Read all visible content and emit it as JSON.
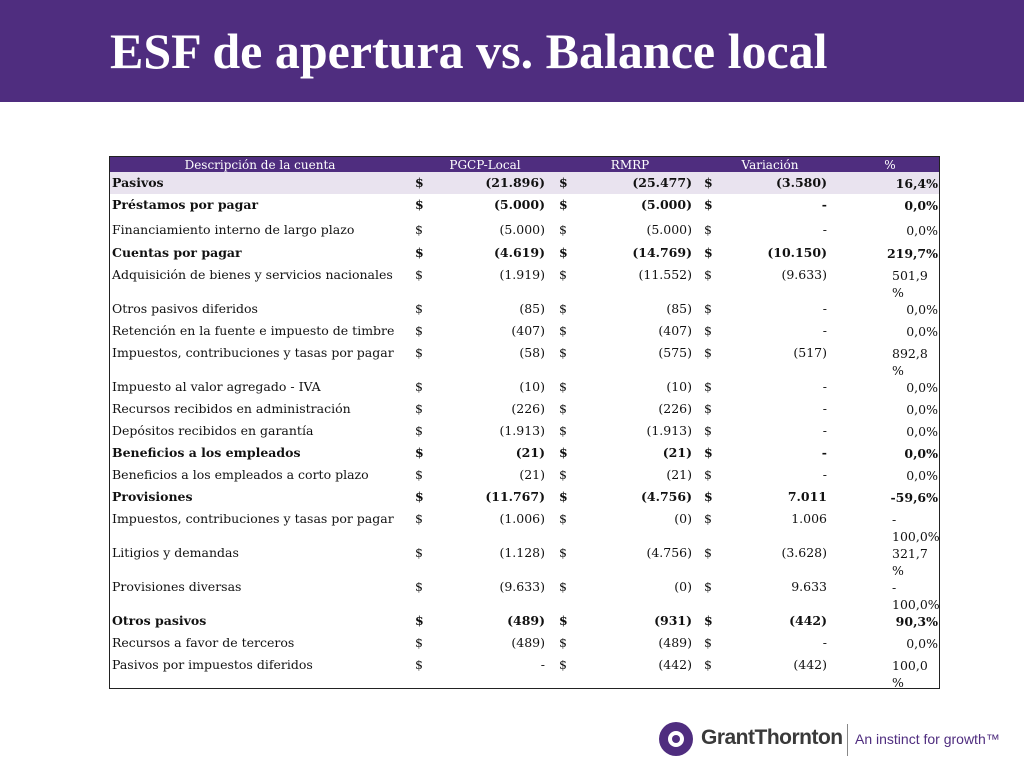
{
  "slide": {
    "title": "ESF de apertura vs. Balance local"
  },
  "table": {
    "headers": {
      "description": "Descripción de la cuenta",
      "pgcp": "PGCP-Local",
      "rmrp": "RMRP",
      "variation": "Variación",
      "percent": "%"
    },
    "rows": [
      {
        "desc": " Pasivos",
        "s1": "$",
        "v1": "(21.896)",
        "s2": "$",
        "v2": "(25.477)",
        "s3": "$",
        "v3": "(3.580)",
        "pct": "16,4%",
        "bold": true,
        "first": true,
        "h": 22
      },
      {
        "desc": "Préstamos por pagar",
        "s1": "$",
        "v1": "(5.000)",
        "s2": "$",
        "v2": "(5.000)",
        "s3": "$",
        "v3": "-",
        "pct": "0,0%",
        "bold": true,
        "h": 25
      },
      {
        "desc": "Financiamiento interno de largo plazo",
        "s1": "$",
        "v1": "(5.000)",
        "s2": "$",
        "v2": "(5.000)",
        "s3": "$",
        "v3": "-",
        "pct": "0,0%",
        "h": 23
      },
      {
        "desc": "Cuentas por pagar",
        "s1": "$",
        "v1": "(4.619)",
        "s2": "$",
        "v2": "(14.769)",
        "s3": "$",
        "v3": "(10.150)",
        "pct": "219,7%",
        "bold": true,
        "h": 22
      },
      {
        "desc": "Adquisición de bienes y servicios nacionales",
        "s1": "$",
        "v1": "(1.919)",
        "s2": "$",
        "v2": "(11.552)",
        "s3": "$",
        "v3": "(9.633)",
        "pct": "501,9 %",
        "wrap": true,
        "h": 34
      },
      {
        "desc": "Otros pasivos diferidos",
        "s1": "$",
        "v1": "(85)",
        "s2": "$",
        "v2": "(85)",
        "s3": "$",
        "v3": "-",
        "pct": "0,0%",
        "h": 22
      },
      {
        "desc": "Retención en la fuente e impuesto de timbre",
        "s1": "$",
        "v1": "(407)",
        "s2": "$",
        "v2": "(407)",
        "s3": "$",
        "v3": "-",
        "pct": "0,0%",
        "h": 22
      },
      {
        "desc": "Impuestos, contribuciones y tasas por pagar",
        "s1": "$",
        "v1": "(58)",
        "s2": "$",
        "v2": "(575)",
        "s3": "$",
        "v3": "(517)",
        "pct": "892,8 %",
        "wrap": true,
        "h": 34
      },
      {
        "desc": "Impuesto al valor agregado - IVA",
        "s1": "$",
        "v1": "(10)",
        "s2": "$",
        "v2": "(10)",
        "s3": "$",
        "v3": "-",
        "pct": "0,0%",
        "h": 22
      },
      {
        "desc": "Recursos recibidos en administración",
        "s1": "$",
        "v1": "(226)",
        "s2": "$",
        "v2": "(226)",
        "s3": "$",
        "v3": "-",
        "pct": "0,0%",
        "h": 22
      },
      {
        "desc": "Depósitos recibidos en garantía",
        "s1": "$",
        "v1": "(1.913)",
        "s2": "$",
        "v2": "(1.913)",
        "s3": "$",
        "v3": "-",
        "pct": "0,0%",
        "h": 22
      },
      {
        "desc": "Beneficios a los empleados",
        "s1": "$",
        "v1": "(21)",
        "s2": "$",
        "v2": "(21)",
        "s3": "$",
        "v3": "-",
        "pct": "0,0%",
        "bold": true,
        "h": 22
      },
      {
        "desc": "Beneficios a los empleados a corto plazo",
        "s1": "$",
        "v1": "(21)",
        "s2": "$",
        "v2": "(21)",
        "s3": "$",
        "v3": "-",
        "pct": "0,0%",
        "h": 22
      },
      {
        "desc": "Provisiones",
        "s1": "$",
        "v1": "(11.767)",
        "s2": "$",
        "v2": "(4.756)",
        "s3": "$",
        "v3": "7.011",
        "pct": "-59,6%",
        "bold": true,
        "h": 22
      },
      {
        "desc": "Impuestos, contribuciones y tasas por pagar",
        "s1": "$",
        "v1": "(1.006)",
        "s2": "$",
        "v2": "(0)",
        "s3": "$",
        "v3": "1.006",
        "pct": "- 100,0%",
        "wrap": true,
        "h": 34
      },
      {
        "desc": "Litigios y demandas",
        "s1": "$",
        "v1": "(1.128)",
        "s2": "$",
        "v2": "(4.756)",
        "s3": "$",
        "v3": "(3.628)",
        "pct": "321,7 %",
        "wrap": true,
        "h": 34
      },
      {
        "desc": "Provisiones diversas",
        "s1": "$",
        "v1": "(9.633)",
        "s2": "$",
        "v2": "(0)",
        "s3": "$",
        "v3": "9.633",
        "pct": "- 100,0%",
        "wrap": true,
        "h": 34
      },
      {
        "desc": "Otros pasivos",
        "s1": "$",
        "v1": "(489)",
        "s2": "$",
        "v2": "(931)",
        "s3": "$",
        "v3": "(442)",
        "pct": "90,3%",
        "bold": true,
        "h": 22
      },
      {
        "desc": "Recursos a favor de terceros",
        "s1": "$",
        "v1": "(489)",
        "s2": "$",
        "v2": "(489)",
        "s3": "$",
        "v3": "-",
        "pct": "0,0%",
        "h": 22
      },
      {
        "desc": "Pasivos por impuestos diferidos",
        "s1": "$",
        "v1": "-",
        "s2": "$",
        "v2": "(442)",
        "s3": "$",
        "v3": "(442)",
        "pct": "100,0 %",
        "wrap": true,
        "h": 34
      }
    ]
  },
  "footer": {
    "brand": "GrantThornton",
    "tagline": "An instinct for growth™",
    "colors": {
      "accent": "#4f2d7f"
    },
    "logo_icon": "grant-thornton-ring-icon"
  }
}
